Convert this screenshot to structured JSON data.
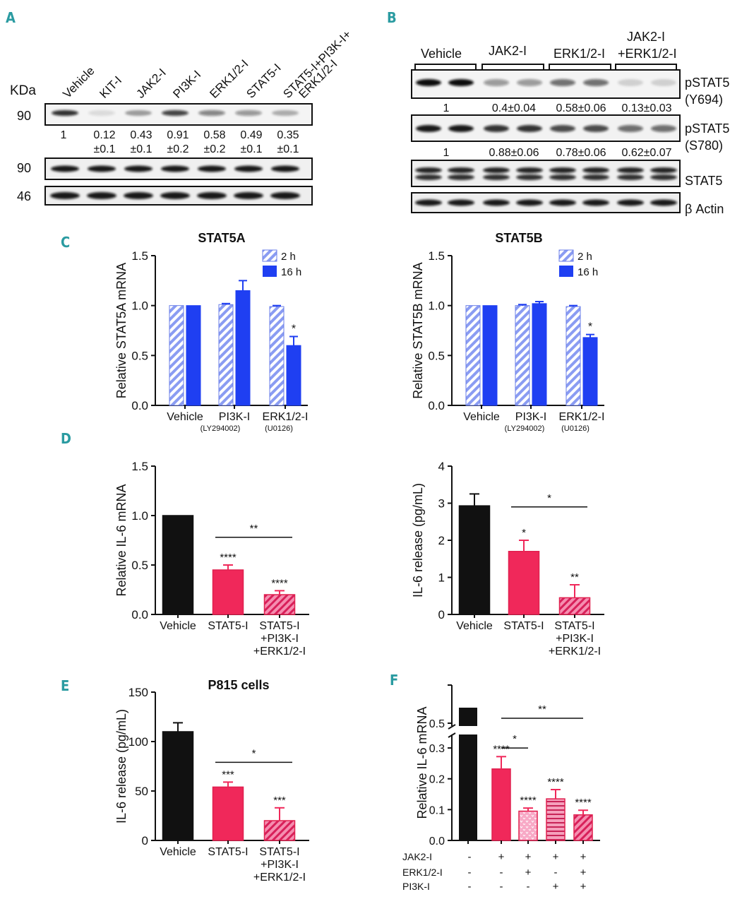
{
  "colors": {
    "accent": "#2a9ba1",
    "blue": "#1f3ff2",
    "blueLight": "#8a9cf2",
    "red": "#f0285a",
    "pink": "#f58eb0",
    "black": "#111111"
  },
  "panelA": {
    "letter": "A",
    "kda": "KDa",
    "lanes": [
      "Vehicle",
      "KIT-I",
      "JAK2-I",
      "PI3K-I",
      "ERK1/2-I",
      "STAT5-I",
      "STAT5-I+PI3K-I+",
      "ERK1/2-I"
    ],
    "markers": [
      "90",
      "90",
      "46"
    ],
    "quant": [
      [
        "1",
        ""
      ],
      [
        "0.12",
        "±0.1"
      ],
      [
        "0.43",
        "±0.1"
      ],
      [
        "0.91",
        "±0.2"
      ],
      [
        "0.58",
        "±0.2"
      ],
      [
        "0.49",
        "±0.1"
      ],
      [
        "0.35",
        "±0.1"
      ]
    ],
    "quant_values": [
      1,
      0.12,
      0.43,
      0.91,
      0.58,
      0.49,
      0.35
    ]
  },
  "panelB": {
    "letter": "B",
    "groups": [
      "Vehicle",
      "JAK2-I",
      "ERK1/2-I",
      "JAK2-I",
      "+ERK1/2-I"
    ],
    "rows": [
      [
        "pSTAT5",
        "(Y694)"
      ],
      [
        "pSTAT5",
        "(S780)"
      ],
      [
        "STAT5",
        ""
      ],
      [
        "β Actin",
        ""
      ]
    ],
    "quant1": [
      "1",
      "0.4±0.04",
      "0.58±0.06",
      "0.13±0.03"
    ],
    "quant2": [
      "1",
      "0.88±0.06",
      "0.78±0.06",
      "0.62±0.07"
    ],
    "quant1_values": [
      1,
      0.4,
      0.58,
      0.13
    ],
    "quant2_values": [
      1,
      0.88,
      0.78,
      0.62
    ]
  },
  "panelC": {
    "letter": "C",
    "sub1": "(LY294002)",
    "sub2": "(U0126)"
  },
  "panelD": {
    "letter": "D"
  },
  "panelE": {
    "letter": "E"
  },
  "panelF": {
    "letter": "F",
    "rows": [
      {
        "label": "JAK2-I",
        "signs": [
          "-",
          "+",
          "+",
          "+",
          "+"
        ]
      },
      {
        "label": "ERK1/2-I",
        "signs": [
          "-",
          "-",
          "+",
          "-",
          "+"
        ]
      },
      {
        "label": "PI3K-I",
        "signs": [
          "-",
          "-",
          "-",
          "+",
          "+"
        ]
      }
    ]
  },
  "chart_data": [
    {
      "id": "C1",
      "type": "bar",
      "title": "STAT5A",
      "ylabel": "Relative STAT5A mRNA",
      "ylim": [
        0,
        1.5
      ],
      "yticks": [
        "0.0",
        "0.5",
        "1.0",
        "1.5"
      ],
      "categories": [
        "Vehicle",
        "PI3K-I",
        "ERK1/2-I"
      ],
      "series": [
        {
          "name": "2 h",
          "values": [
            1.0,
            1.01,
            0.99
          ],
          "errors": [
            0,
            0.01,
            0.01
          ]
        },
        {
          "name": "16 h",
          "values": [
            1.0,
            1.15,
            0.6
          ],
          "errors": [
            0,
            0.1,
            0.09
          ]
        }
      ],
      "annotations": [
        {
          "text": "*",
          "category": "ERK1/2-I",
          "series": "16 h"
        }
      ],
      "legend": "top-right"
    },
    {
      "id": "C2",
      "type": "bar",
      "title": "STAT5B",
      "ylabel": "Relative STAT5B mRNA",
      "ylim": [
        0,
        1.5
      ],
      "yticks": [
        "0.0",
        "0.5",
        "1.0",
        "1.5"
      ],
      "categories": [
        "Vehicle",
        "PI3K-I",
        "ERK1/2-I"
      ],
      "series": [
        {
          "name": "2 h",
          "values": [
            1.0,
            1.0,
            0.99
          ],
          "errors": [
            0,
            0.01,
            0.01
          ]
        },
        {
          "name": "16 h",
          "values": [
            1.0,
            1.02,
            0.68
          ],
          "errors": [
            0,
            0.02,
            0.03
          ]
        }
      ],
      "annotations": [
        {
          "text": "*",
          "category": "ERK1/2-I",
          "series": "16 h"
        }
      ],
      "legend": "top-right"
    },
    {
      "id": "D1",
      "type": "bar",
      "title": "",
      "ylabel": "Relative IL-6 mRNA",
      "ylim": [
        0,
        1.5
      ],
      "yticks": [
        "0.0",
        "0.5",
        "1.0",
        "1.5"
      ],
      "categories": [
        [
          "Vehicle"
        ],
        [
          "STAT5-I"
        ],
        [
          "STAT5-I",
          "+PI3K-I",
          "+ERK1/2-I"
        ]
      ],
      "values": [
        1.0,
        0.45,
        0.2
      ],
      "errors": [
        0,
        0.05,
        0.04
      ],
      "stars": [
        "",
        "****",
        "****"
      ],
      "brackets": [
        {
          "from": 1,
          "to": 2,
          "text": "**",
          "value": 0.78
        }
      ]
    },
    {
      "id": "D2",
      "type": "bar",
      "title": "",
      "ylabel": "IL-6 release (pg/mL)",
      "ylim": [
        0,
        4
      ],
      "yticks": [
        "0",
        "1",
        "2",
        "3",
        "4"
      ],
      "categories": [
        [
          "Vehicle"
        ],
        [
          "STAT5-I"
        ],
        [
          "STAT5-I",
          "+PI3K-I",
          "+ERK1/2-I"
        ]
      ],
      "values": [
        2.93,
        1.7,
        0.45
      ],
      "errors": [
        0.32,
        0.3,
        0.35
      ],
      "stars": [
        "",
        "*",
        "**"
      ],
      "brackets": [
        {
          "from": 1,
          "to": 2,
          "text": "*",
          "value": 2.9
        }
      ]
    },
    {
      "id": "E",
      "type": "bar",
      "title": "P815 cells",
      "ylabel": "IL-6 release (pg/mL)",
      "ylim": [
        0,
        150
      ],
      "yticks": [
        "0",
        "50",
        "100",
        "150"
      ],
      "categories": [
        [
          "Vehicle"
        ],
        [
          "STAT5-I"
        ],
        [
          "STAT5-I",
          "+PI3K-I",
          "+ERK1/2-I"
        ]
      ],
      "values": [
        110,
        54,
        20
      ],
      "errors": [
        9,
        5,
        13
      ],
      "stars": [
        "",
        "***",
        "***"
      ],
      "brackets": [
        {
          "from": 1,
          "to": 2,
          "text": "*",
          "value": 79
        }
      ]
    },
    {
      "id": "F",
      "type": "bar",
      "title": "",
      "ylabel": "Relative IL-6 mRNA",
      "ylim": [
        0,
        0.5
      ],
      "yticks": [
        "0.0",
        "0.1",
        "0.2",
        "0.3",
        "0.5"
      ],
      "axis_break": [
        0.33,
        0.5
      ],
      "categories": [
        "1",
        "2",
        "3",
        "4",
        "5"
      ],
      "values": [
        1.0,
        0.232,
        0.095,
        0.135,
        0.083
      ],
      "errors": [
        0,
        0.04,
        0.01,
        0.03,
        0.015
      ],
      "stars": [
        "",
        "****",
        "****",
        "****",
        "****"
      ],
      "brackets": [
        {
          "from": 1,
          "to": 2,
          "text": "*",
          "value": 0.3
        },
        {
          "from": 1,
          "to": 4,
          "text": "**",
          "value": 0.52
        }
      ]
    }
  ]
}
